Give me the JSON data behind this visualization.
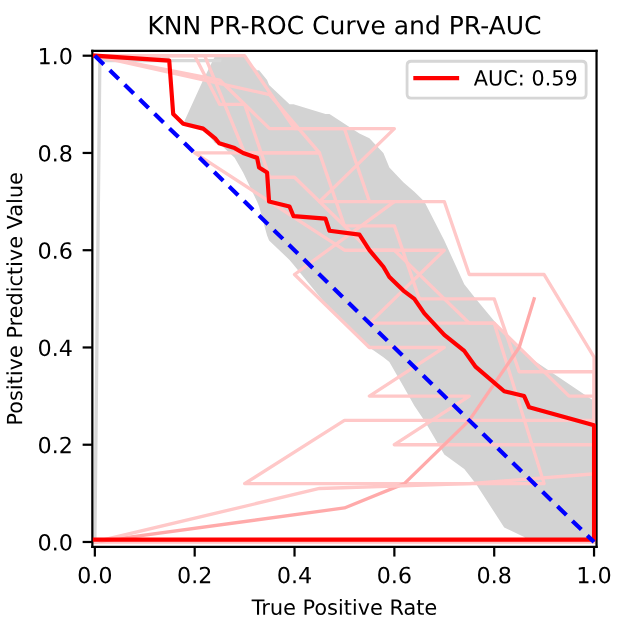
{
  "chart_data": {
    "type": "line",
    "title": "KNN PR-ROC Curve and PR-AUC",
    "xlabel": "True Positive Rate",
    "ylabel": "Positive Predictive Value",
    "xlim": [
      -0.005,
      1.005
    ],
    "ylim": [
      -0.01,
      1.01
    ],
    "xticks": [
      {
        "value": 0.0,
        "label": "0.0"
      },
      0.2,
      0.4,
      0.6,
      0.8,
      {
        "value": 1.0,
        "label": "1.0"
      }
    ],
    "yticks": [
      {
        "value": 0.0,
        "label": "0.0"
      },
      0.2,
      0.4,
      0.6,
      0.8,
      {
        "value": 1.0,
        "label": "1.0"
      }
    ],
    "grid": false,
    "legend": "top right",
    "series": [
      {
        "color": "#d8d8d8",
        "x": [
          0.0,
          0.01,
          0.25
        ],
        "values": [
          0.0,
          0.99,
          0.99
        ]
      },
      {
        "color": "#ffc8c8",
        "x": [
          0.0,
          0.2,
          0.25,
          0.3,
          0.35,
          0.4,
          0.55,
          0.6,
          0.75,
          0.8,
          0.95,
          1.0,
          1.0,
          0.0
        ],
        "values": [
          1.0,
          1.0,
          0.9,
          0.9,
          0.75,
          0.75,
          0.6,
          0.6,
          0.45,
          0.45,
          0.3,
          0.3,
          0.0,
          0.0
        ]
      },
      {
        "color": "#ffc8c8",
        "x": [
          0.0,
          0.22,
          0.3,
          0.45,
          0.5,
          0.6,
          0.65,
          0.8,
          0.85,
          1.0,
          1.0
        ],
        "values": [
          1.0,
          1.0,
          0.8,
          0.8,
          0.65,
          0.65,
          0.5,
          0.5,
          0.35,
          0.35,
          0.0
        ]
      },
      {
        "color": "#ffc8c8",
        "x": [
          0.0,
          0.25,
          0.35,
          0.5,
          0.55,
          0.7,
          0.75,
          0.9,
          1.0,
          1.0
        ],
        "values": [
          1.0,
          0.95,
          0.85,
          0.85,
          0.7,
          0.7,
          0.55,
          0.55,
          0.38,
          0.0
        ]
      },
      {
        "color": "#ffc8c8",
        "x": [
          0.0,
          0.3,
          0.4,
          0.6,
          0.45,
          0.6,
          0.4,
          0.55,
          0.7,
          0.55,
          0.75,
          0.6,
          0.8,
          1.0
        ],
        "values": [
          1.0,
          1.0,
          0.85,
          0.85,
          0.7,
          0.7,
          0.55,
          0.4,
          0.4,
          0.3,
          0.3,
          0.2,
          0.2,
          0.2
        ]
      },
      {
        "color": "#ffc8c8",
        "x": [
          0.0,
          0.35,
          0.45,
          0.2,
          0.5,
          0.7,
          0.55,
          0.8,
          0.9,
          0.3,
          0.5,
          0.95,
          1.0
        ],
        "values": [
          1.0,
          0.92,
          0.8,
          0.8,
          0.6,
          0.6,
          0.45,
          0.45,
          0.12,
          0.12,
          0.25,
          0.25,
          0.25
        ]
      },
      {
        "color": "#ffaaaa",
        "x": [
          0.0,
          0.5,
          0.62,
          0.75,
          0.85,
          0.88
        ],
        "values": [
          0.0,
          0.07,
          0.12,
          0.25,
          0.4,
          0.5
        ]
      },
      {
        "color": "#ffc8c8",
        "x": [
          0.0,
          0.45,
          0.75,
          1.0
        ],
        "values": [
          0.0,
          0.11,
          0.12,
          0.14
        ]
      },
      {
        "color": "#ff0000",
        "name": "AUC: 0.59",
        "x": [
          0.0,
          0.149,
          0.157,
          0.177,
          0.217,
          0.241,
          0.249,
          0.28,
          0.297,
          0.325,
          0.329,
          0.345,
          0.349,
          0.39,
          0.398,
          0.462,
          0.47,
          0.53,
          0.55,
          0.578,
          0.59,
          0.618,
          0.64,
          0.66,
          0.7,
          0.74,
          0.763,
          0.82,
          0.86,
          0.87,
          1.0,
          1.0,
          0.0
        ],
        "values": [
          1.0,
          0.99,
          0.88,
          0.86,
          0.85,
          0.83,
          0.82,
          0.81,
          0.8,
          0.79,
          0.77,
          0.76,
          0.7,
          0.69,
          0.67,
          0.665,
          0.64,
          0.632,
          0.6,
          0.566,
          0.545,
          0.517,
          0.5,
          0.47,
          0.426,
          0.393,
          0.36,
          0.31,
          0.3,
          0.277,
          0.24,
          0.005,
          0.005
        ],
        "lower": [
          1.0,
          0.99,
          0.88,
          0.86,
          0.85,
          0.82,
          0.82,
          0.79,
          0.76,
          0.7,
          0.69,
          0.63,
          0.62,
          0.58,
          0.57,
          0.49,
          0.48,
          0.42,
          0.4,
          0.38,
          0.37,
          0.32,
          0.28,
          0.25,
          0.18,
          0.15,
          0.12,
          0.03,
          0.01,
          0.0,
          0.0,
          0.005,
          null
        ],
        "upper": [
          1.0,
          1.0,
          0.88,
          0.86,
          0.95,
          1.0,
          1.0,
          1.0,
          1.0,
          0.97,
          0.97,
          0.95,
          0.94,
          0.9,
          0.9,
          0.88,
          0.88,
          0.84,
          0.83,
          0.8,
          0.77,
          0.74,
          0.72,
          0.7,
          0.62,
          0.53,
          0.5,
          0.43,
          0.39,
          0.38,
          0.29,
          0.005,
          null
        ]
      },
      {
        "color": "#0000ff",
        "line_style": "dashed",
        "x": [
          0.0,
          1.0
        ],
        "values": [
          1.0,
          0.0
        ]
      }
    ]
  }
}
